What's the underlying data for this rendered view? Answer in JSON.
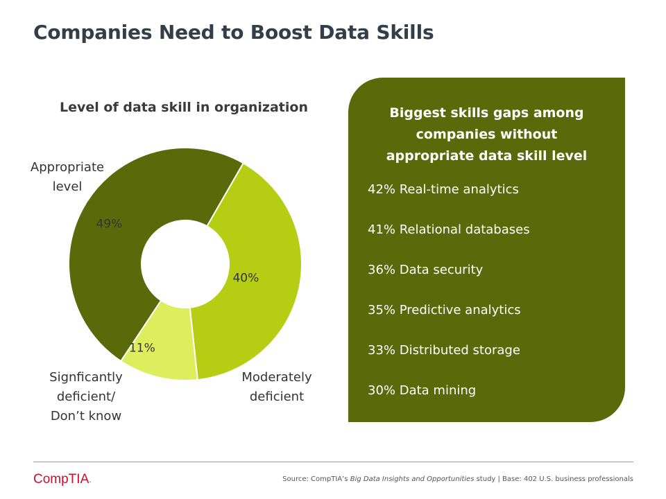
{
  "slide": {
    "title": "Companies Need to Boost Data Skills"
  },
  "chart_data": {
    "type": "pie",
    "title": "Level of data skill in organization",
    "categories": [
      "Appropriate level",
      "Moderately deficient",
      "Signficantly deficient/ Don’t know"
    ],
    "values": [
      49,
      40,
      11
    ],
    "labels": [
      "49%",
      "40%",
      "11%"
    ],
    "colors": [
      "#5a6a0a",
      "#b5cd12",
      "#dcee5c"
    ],
    "donut": true
  },
  "category_labels": {
    "appropriate": [
      "Appropriate",
      "level"
    ],
    "moderate": [
      "Moderately",
      "deficient"
    ],
    "significant": [
      "Signficantly",
      "deficient/",
      "Don’t know"
    ]
  },
  "gaps_panel": {
    "title_lines": [
      "Biggest skills gaps among",
      "companies without",
      "appropriate data skill level"
    ],
    "items": [
      "42% Real-time analytics",
      "41% Relational databases",
      "36% Data security",
      "35% Predictive analytics",
      "33% Distributed storage",
      "30% Data mining"
    ]
  },
  "footer": {
    "logo_text": "CompTIA",
    "logo_dot": ".",
    "source_prefix": "Source: CompTIA’s ",
    "source_study": "Big Data Insights and Opportunities",
    "source_suffix": " study | Base: 402 U.S. business professionals"
  },
  "colors": {
    "title": "#323e48",
    "panel": "#5a6a0a",
    "brand": "#c8102e"
  }
}
